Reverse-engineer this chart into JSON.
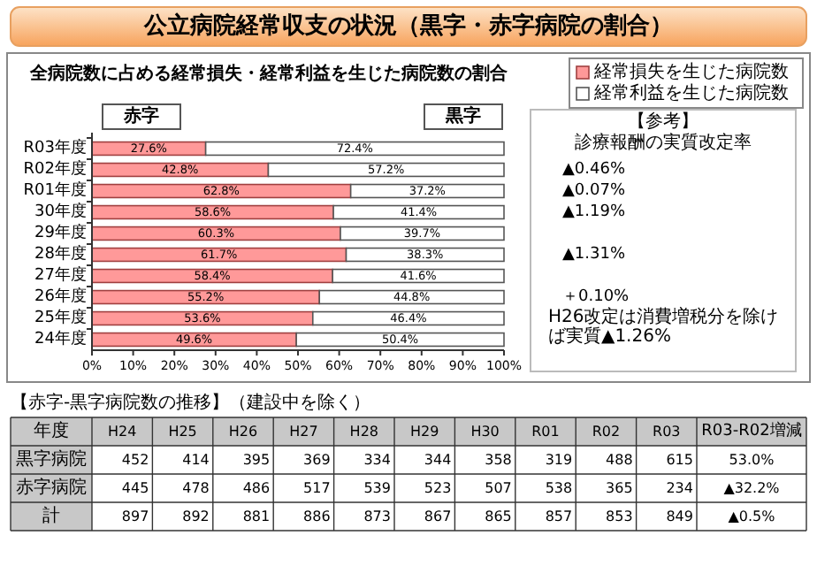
{
  "chart_data": [
    {
      "type": "bar",
      "orientation": "horizontal",
      "stacked": true,
      "title": "公立病院経常収支の状況（黒字・赤字病院の割合）",
      "subtitle": "全病院数に占める経常損失・経常利益を生じた病院数の割合",
      "categories": [
        "R03年度",
        "R02年度",
        "R01年度",
        "30年度",
        "29年度",
        "28年度",
        "27年度",
        "26年度",
        "25年度",
        "24年度"
      ],
      "series": [
        {
          "name": "経常損失を生じた病院数",
          "color": "#ff9999",
          "values": [
            27.6,
            42.8,
            62.8,
            58.6,
            60.3,
            61.7,
            58.4,
            55.2,
            53.6,
            49.6
          ],
          "value_labels": [
            "27.6%",
            "42.8%",
            "62.8%",
            "58.6%",
            "60.3%",
            "61.7%",
            "58.4%",
            "55.2%",
            "53.6%",
            "49.6%"
          ]
        },
        {
          "name": "経常利益を生じた病院数",
          "color": "#ffffff",
          "values": [
            72.4,
            57.2,
            37.2,
            41.4,
            39.7,
            38.3,
            41.6,
            44.8,
            46.4,
            50.4
          ],
          "value_labels": [
            "72.4%",
            "57.2%",
            "37.2%",
            "41.4%",
            "39.7%",
            "38.3%",
            "41.6%",
            "44.8%",
            "46.4%",
            "50.4%"
          ]
        }
      ],
      "xlim": [
        0,
        100
      ],
      "xticks": [
        {
          "value": 0,
          "label": "0%"
        },
        {
          "value": 10,
          "label": "10%"
        },
        {
          "value": 20,
          "label": "20%"
        },
        {
          "value": 30,
          "label": "30%"
        },
        {
          "value": 40,
          "label": "40%"
        },
        {
          "value": 50,
          "label": "50%"
        },
        {
          "value": 60,
          "label": "60%"
        },
        {
          "value": 70,
          "label": "70%"
        },
        {
          "value": 80,
          "label": "80%"
        },
        {
          "value": 90,
          "label": "90%"
        },
        {
          "value": 100,
          "label": "100%"
        }
      ],
      "legend": "top right",
      "annotations": [
        "赤字",
        "黒字",
        "【参考】",
        "診療報酬の実質改定率",
        "▲0.46%",
        "▲0.07%",
        "▲1.19%",
        "▲1.31%",
        "＋0.10%",
        "H26改定は消費増税分を除けば実質▲1.26%"
      ]
    },
    {
      "type": "other",
      "title": "【赤字‐黒字病院数の推移】（建設中を除く）",
      "xlabel": "年度",
      "categories": [
        "H24",
        "H25",
        "H26",
        "H27",
        "H28",
        "H29",
        "H30",
        "R01",
        "R02",
        "R03"
      ],
      "series": [
        {
          "name": "黒字病院",
          "values": [
            452,
            414,
            395,
            369,
            334,
            344,
            358,
            319,
            488,
            615
          ]
        },
        {
          "name": "赤字病院",
          "values": [
            445,
            478,
            486,
            517,
            539,
            523,
            507,
            538,
            365,
            234
          ]
        },
        {
          "name": "計",
          "values": [
            897,
            892,
            881,
            886,
            873,
            867,
            865,
            857,
            853,
            849
          ]
        }
      ],
      "data_labels": true,
      "annotations": [
        "R03-R02増減",
        "53.0%",
        "▲32.2%",
        "▲0.5%"
      ]
    }
  ]
}
